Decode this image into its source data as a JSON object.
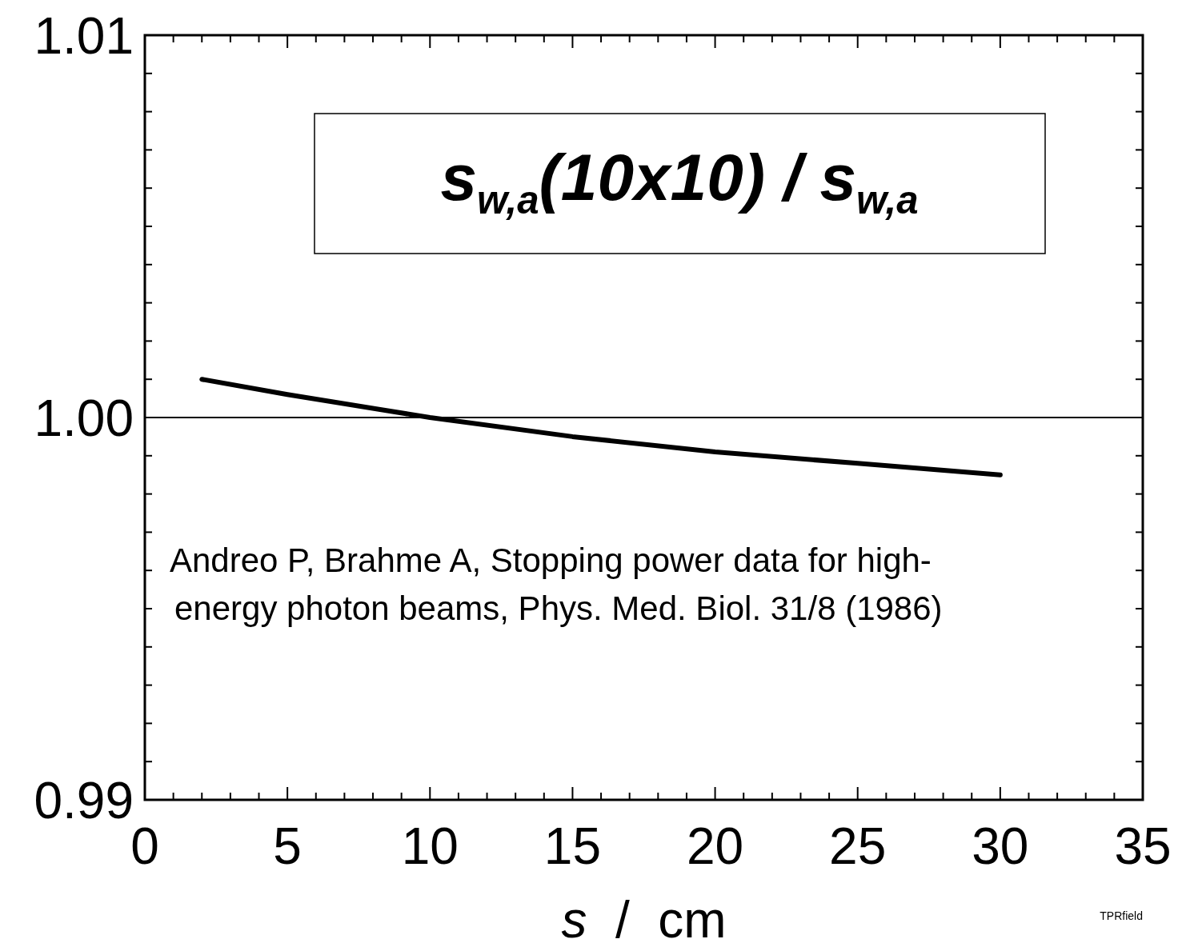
{
  "chart_data": {
    "type": "line",
    "xlabel": "s  /  cm",
    "x": [
      2,
      5,
      10,
      15,
      20,
      25,
      30
    ],
    "values": [
      1.001,
      1.0006,
      1.0,
      0.9995,
      0.9991,
      0.9988,
      0.9985
    ],
    "color": "#000000",
    "xlim": [
      0,
      35
    ],
    "ylim": [
      0.99,
      1.01
    ],
    "xticks": [
      0,
      {
        "value": 1,
        "label": null
      },
      {
        "value": 2,
        "label": null
      },
      {
        "value": 3,
        "label": null
      },
      {
        "value": 4,
        "label": null
      },
      5,
      {
        "value": 6,
        "label": null
      },
      {
        "value": 7,
        "label": null
      },
      {
        "value": 8,
        "label": null
      },
      {
        "value": 9,
        "label": null
      },
      10,
      {
        "value": 11,
        "label": null
      },
      {
        "value": 12,
        "label": null
      },
      {
        "value": 13,
        "label": null
      },
      {
        "value": 14,
        "label": null
      },
      15,
      {
        "value": 16,
        "label": null
      },
      {
        "value": 17,
        "label": null
      },
      {
        "value": 18,
        "label": null
      },
      {
        "value": 19,
        "label": null
      },
      20,
      {
        "value": 21,
        "label": null
      },
      {
        "value": 22,
        "label": null
      },
      {
        "value": 23,
        "label": null
      },
      {
        "value": 24,
        "label": null
      },
      25,
      {
        "value": 26,
        "label": null
      },
      {
        "value": 27,
        "label": null
      },
      {
        "value": 28,
        "label": null
      },
      {
        "value": 29,
        "label": null
      },
      30,
      {
        "value": 31,
        "label": null
      },
      {
        "value": 32,
        "label": null
      },
      {
        "value": 33,
        "label": null
      },
      {
        "value": 34,
        "label": null
      },
      35
    ],
    "yticks": [
      0.99,
      {
        "value": 0.991,
        "label": null
      },
      {
        "value": 0.992,
        "label": null
      },
      {
        "value": 0.993,
        "label": null
      },
      {
        "value": 0.994,
        "label": null
      },
      {
        "value": 0.995,
        "label": null
      },
      {
        "value": 0.996,
        "label": null
      },
      {
        "value": 0.997,
        "label": null
      },
      {
        "value": 0.998,
        "label": null
      },
      {
        "value": 0.999,
        "label": null
      },
      {
        "value": 1.0,
        "label": "1.00"
      },
      {
        "value": 1.001,
        "label": null
      },
      {
        "value": 1.002,
        "label": null
      },
      {
        "value": 1.003,
        "label": null
      },
      {
        "value": 1.004,
        "label": null
      },
      {
        "value": 1.005,
        "label": null
      },
      {
        "value": 1.006,
        "label": null
      },
      {
        "value": 1.007,
        "label": null
      },
      {
        "value": 1.008,
        "label": null
      },
      {
        "value": 1.009,
        "label": null
      },
      1.01
    ],
    "ref_lines": [
      {
        "axis": "y",
        "value": 1.0,
        "color": "#000000"
      }
    ],
    "grid": false,
    "marker": "none",
    "line_style": "solid",
    "annotations": [
      "s$_{w,a}$(10x10) / s$_{w,a}$",
      "Andreo P, Brahme A, Stopping power data for high-energy photon beams, Phys. Med. Biol. 31/8 (1986)",
      "TPRfield"
    ]
  }
}
